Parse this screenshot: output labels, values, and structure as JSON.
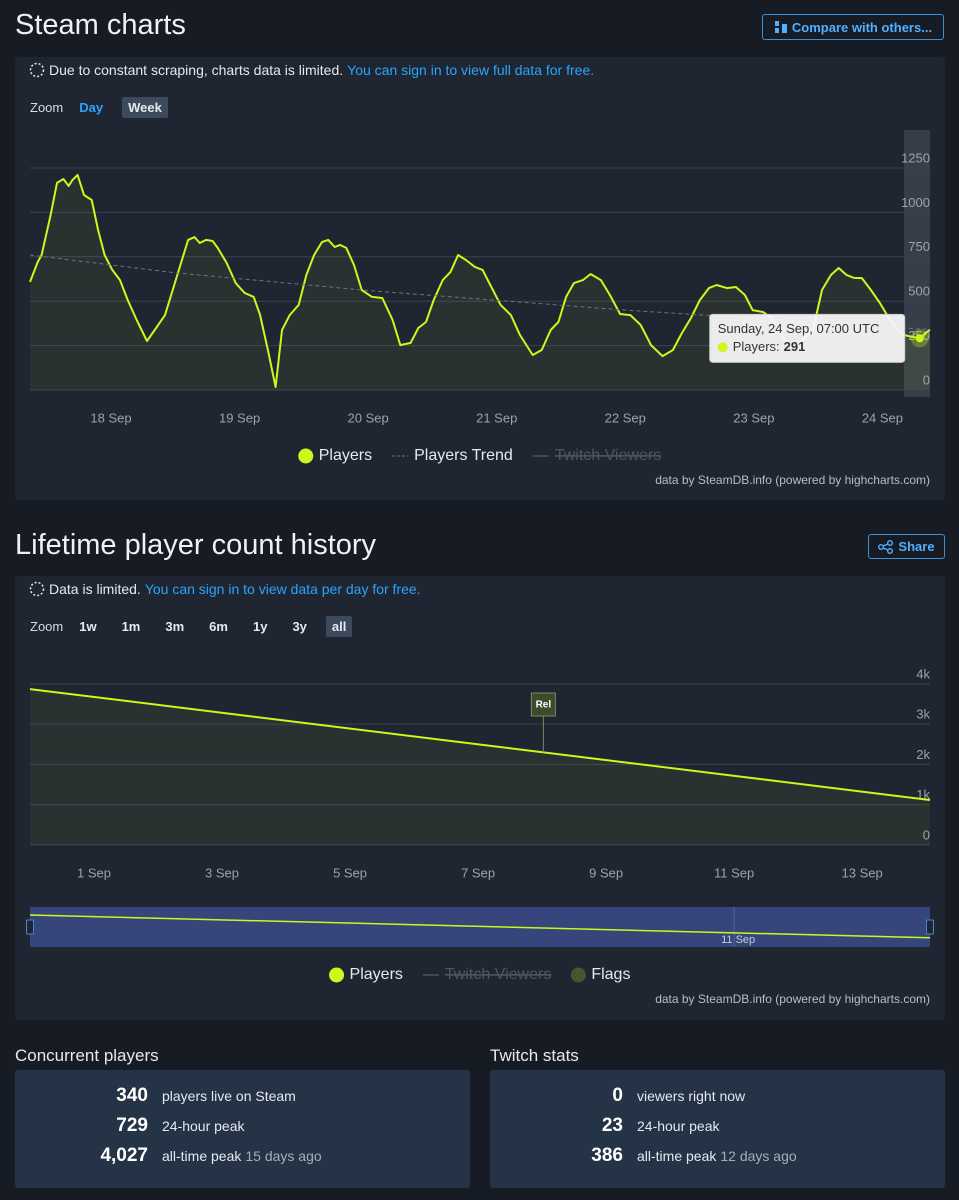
{
  "header": {
    "title": "Steam charts",
    "compare_button": "Compare with others..."
  },
  "charts_panel": {
    "notice": "Due to constant scraping, charts data is limited.",
    "notice_link": "You can sign in to view full data for free.",
    "zoom_label": "Zoom",
    "zoom_options": [
      "Day",
      "Week"
    ],
    "zoom_selected": 1,
    "credit": "data by SteamDB.info (powered by highcharts.com)"
  },
  "history": {
    "title": "Lifetime player count history",
    "share_button": "Share",
    "notice": "Data is limited.",
    "notice_link": "You can sign in to view data per day for free.",
    "zoom_label": "Zoom",
    "zoom_options": [
      "1w",
      "1m",
      "3m",
      "6m",
      "1y",
      "3y",
      "all"
    ],
    "zoom_selected": 6,
    "credit": "data by SteamDB.info (powered by highcharts.com)"
  },
  "chart_data": [
    {
      "type": "line",
      "x": [
        17.37,
        17.43,
        17.46,
        17.53,
        17.58,
        17.63,
        17.67,
        17.7,
        17.74,
        17.79,
        17.85,
        17.9,
        17.95,
        18.01,
        18.07,
        18.13,
        18.2,
        18.28,
        18.34,
        18.42,
        18.48,
        18.54,
        18.6,
        18.65,
        18.69,
        18.74,
        18.79,
        18.83,
        18.9,
        18.97,
        19.04,
        19.11,
        19.16,
        19.22,
        19.28,
        19.33,
        19.39,
        19.46,
        19.52,
        19.58,
        19.64,
        19.69,
        19.74,
        19.78,
        19.83,
        19.89,
        19.95,
        20.03,
        20.11,
        20.19,
        20.25,
        20.33,
        20.39,
        20.45,
        20.51,
        20.58,
        20.64,
        20.7,
        20.76,
        20.83,
        20.89,
        20.95,
        21.03,
        21.11,
        21.18,
        21.28,
        21.35,
        21.42,
        21.48,
        21.54,
        21.6,
        21.67,
        21.73,
        21.81,
        21.88,
        21.96,
        22.04,
        22.12,
        22.2,
        22.29,
        22.37,
        22.44,
        22.51,
        22.58,
        22.65,
        22.71,
        22.79,
        22.86,
        22.93,
        22.99,
        23.07,
        23.14,
        23.24,
        23.32,
        23.38,
        23.46,
        23.53,
        23.6,
        23.66,
        23.72,
        23.78,
        23.84,
        23.91,
        23.98,
        24.06,
        24.16,
        24.29,
        24.37
      ],
      "series": [
        {
          "name": "Players",
          "color": "#cdf81b",
          "values": [
            608,
            721,
            760,
            985,
            1166,
            1188,
            1149,
            1182,
            1211,
            1098,
            1070,
            901,
            760,
            676,
            619,
            507,
            394,
            276,
            338,
            422,
            563,
            704,
            845,
            861,
            828,
            845,
            839,
            800,
            715,
            602,
            546,
            524,
            422,
            225,
            17,
            338,
            422,
            479,
            648,
            760,
            833,
            845,
            805,
            817,
            800,
            704,
            563,
            524,
            518,
            394,
            253,
            265,
            349,
            383,
            507,
            619,
            664,
            760,
            732,
            693,
            676,
            591,
            479,
            422,
            310,
            197,
            225,
            338,
            383,
            524,
            602,
            619,
            653,
            619,
            535,
            428,
            422,
            366,
            253,
            191,
            225,
            321,
            405,
            507,
            574,
            591,
            574,
            580,
            535,
            450,
            439,
            405,
            282,
            242,
            282,
            338,
            563,
            648,
            687,
            648,
            631,
            630,
            563,
            490,
            394,
            310,
            291,
            340
          ]
        },
        {
          "name": "Players Trend",
          "color": "#6b7380",
          "dash": true,
          "x": [
            17.37,
            18.5,
            20,
            22,
            24.37
          ],
          "values": [
            760,
            660,
            560,
            450,
            340
          ]
        },
        {
          "name": "Twitch Viewers",
          "color": "#4c5563",
          "visible": false
        }
      ],
      "xlim": [
        17.37,
        24.37
      ],
      "xticks": [
        {
          "value": 18,
          "label": "18 Sep"
        },
        {
          "value": 19,
          "label": "19 Sep"
        },
        {
          "value": 20,
          "label": "20 Sep"
        },
        {
          "value": 21,
          "label": "21 Sep"
        },
        {
          "value": 22,
          "label": "22 Sep"
        },
        {
          "value": 23,
          "label": "23 Sep"
        },
        {
          "value": 24,
          "label": "24 Sep"
        }
      ],
      "ylim": [
        0,
        1464
      ],
      "yticks": [
        0,
        250,
        500,
        750,
        1000,
        1250
      ],
      "grid": true,
      "tooltip": {
        "header": "Sunday, 24 Sep, 07:00 UTC",
        "label": "Players:",
        "value": 291
      }
    },
    {
      "type": "line",
      "x": [
        0,
        14.06
      ],
      "series": [
        {
          "name": "Players",
          "color": "#cdf81b",
          "values": [
            3870,
            1117
          ]
        },
        {
          "name": "Twitch Viewers",
          "color": "#4c5563",
          "visible": false
        },
        {
          "name": "Flags",
          "color": "#3f4a2b",
          "flags": [
            {
              "x": 8.02,
              "label": "Rel"
            }
          ]
        }
      ],
      "xlim": [
        0,
        14.06
      ],
      "xticks": [
        {
          "value": 1,
          "label": "1 Sep"
        },
        {
          "value": 3,
          "label": "3 Sep"
        },
        {
          "value": 5,
          "label": "5 Sep"
        },
        {
          "value": 7,
          "label": "7 Sep"
        },
        {
          "value": 9,
          "label": "9 Sep"
        },
        {
          "value": 11,
          "label": "11 Sep"
        },
        {
          "value": 13,
          "label": "13 Sep"
        }
      ],
      "ylim": [
        0,
        4840
      ],
      "yticks": [
        0,
        {
          "value": 1000,
          "label": "1k"
        },
        {
          "value": 2000,
          "label": "2k"
        },
        {
          "value": 3000,
          "label": "3k"
        },
        {
          "value": 4000,
          "label": "4k"
        }
      ],
      "grid": true,
      "navigator": {
        "xticks": [
          {
            "value": 11,
            "label": "11 Sep"
          }
        ]
      }
    }
  ],
  "stats": {
    "concurrent": {
      "title": "Concurrent players",
      "rows": [
        {
          "value": "340",
          "label": "players live on Steam"
        },
        {
          "value": "729",
          "label": "24-hour peak"
        },
        {
          "value": "4,027",
          "label": "all-time peak",
          "note": "15 days ago"
        }
      ]
    },
    "twitch": {
      "title": "Twitch stats",
      "rows": [
        {
          "value": "0",
          "label": "viewers right now"
        },
        {
          "value": "23",
          "label": "24-hour peak"
        },
        {
          "value": "386",
          "label": "all-time peak",
          "note": "12 days ago"
        }
      ]
    }
  }
}
